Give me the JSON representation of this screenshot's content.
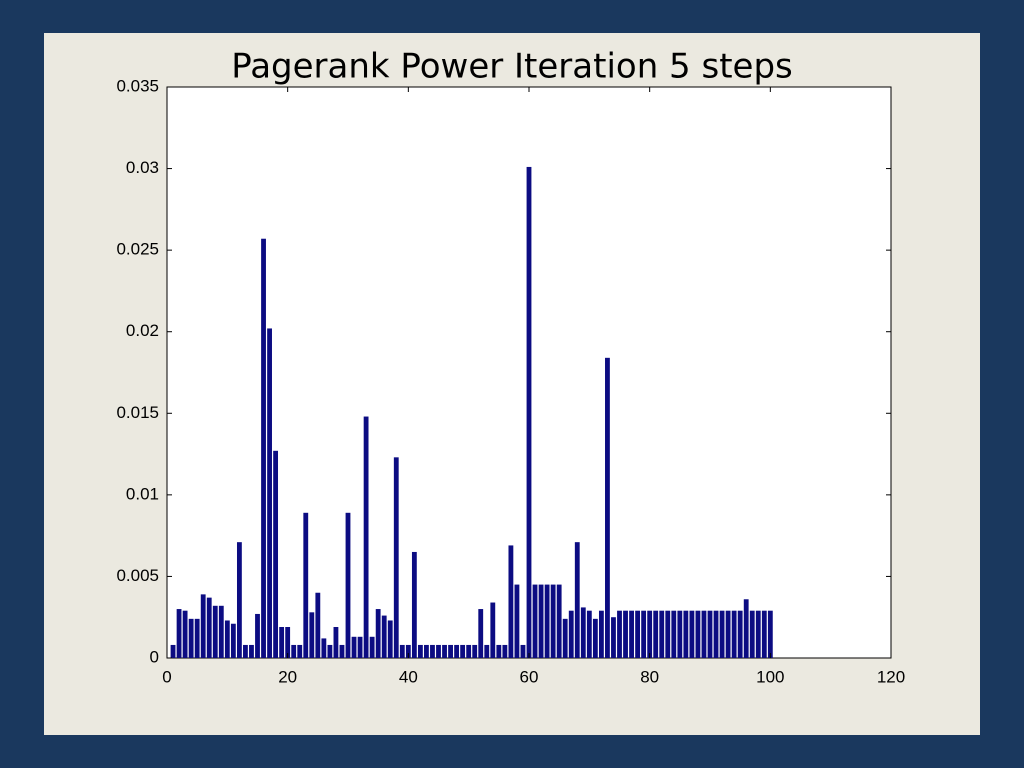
{
  "chart_data": {
    "type": "bar",
    "title": "Pagerank Power Iteration 5 steps",
    "x": [
      1,
      2,
      3,
      4,
      5,
      6,
      7,
      8,
      9,
      10,
      11,
      12,
      13,
      14,
      15,
      16,
      17,
      18,
      19,
      20,
      21,
      22,
      23,
      24,
      25,
      26,
      27,
      28,
      29,
      30,
      31,
      32,
      33,
      34,
      35,
      36,
      37,
      38,
      39,
      40,
      41,
      42,
      43,
      44,
      45,
      46,
      47,
      48,
      49,
      50,
      51,
      52,
      53,
      54,
      55,
      56,
      57,
      58,
      59,
      60,
      61,
      62,
      63,
      64,
      65,
      66,
      67,
      68,
      69,
      70,
      71,
      72,
      73,
      74,
      75,
      76,
      77,
      78,
      79,
      80,
      81,
      82,
      83,
      84,
      85,
      86,
      87,
      88,
      89,
      90,
      91,
      92,
      93,
      94,
      95,
      96,
      97,
      98,
      99,
      100
    ],
    "values": [
      0.0008,
      0.003,
      0.0029,
      0.0024,
      0.0024,
      0.0039,
      0.0037,
      0.0032,
      0.0032,
      0.0023,
      0.0021,
      0.0071,
      0.0008,
      0.0008,
      0.0027,
      0.0257,
      0.0202,
      0.0127,
      0.0019,
      0.0019,
      0.0008,
      0.0008,
      0.0089,
      0.0028,
      0.004,
      0.0012,
      0.0008,
      0.0019,
      0.0008,
      0.0089,
      0.0013,
      0.0013,
      0.0148,
      0.0013,
      0.003,
      0.0026,
      0.0023,
      0.0123,
      0.0008,
      0.0008,
      0.0065,
      0.0008,
      0.0008,
      0.0008,
      0.0008,
      0.0008,
      0.0008,
      0.0008,
      0.0008,
      0.0008,
      0.0008,
      0.003,
      0.0008,
      0.0034,
      0.0008,
      0.0008,
      0.0069,
      0.0045,
      0.0008,
      0.0301,
      0.0045,
      0.0045,
      0.0045,
      0.0045,
      0.0045,
      0.0024,
      0.0029,
      0.0071,
      0.0031,
      0.0029,
      0.0024,
      0.0029,
      0.0184,
      0.0025,
      0.0029,
      0.0029,
      0.0029,
      0.0029,
      0.0029,
      0.0029,
      0.0029,
      0.0029,
      0.0029,
      0.0029,
      0.0029,
      0.0029,
      0.0029,
      0.0029,
      0.0029,
      0.0029,
      0.0029,
      0.0029,
      0.0029,
      0.0029,
      0.0029,
      0.0036,
      0.0029,
      0.0029,
      0.0029,
      0.0029
    ],
    "color": "#0c0c82",
    "xlim": [
      0,
      120
    ],
    "xticks": [
      0,
      20,
      40,
      60,
      80,
      100,
      120
    ],
    "ylim": [
      0,
      0.035
    ],
    "yticks": [
      0,
      0.005,
      0.01,
      0.015,
      0.02,
      0.025,
      0.03,
      0.035
    ]
  }
}
